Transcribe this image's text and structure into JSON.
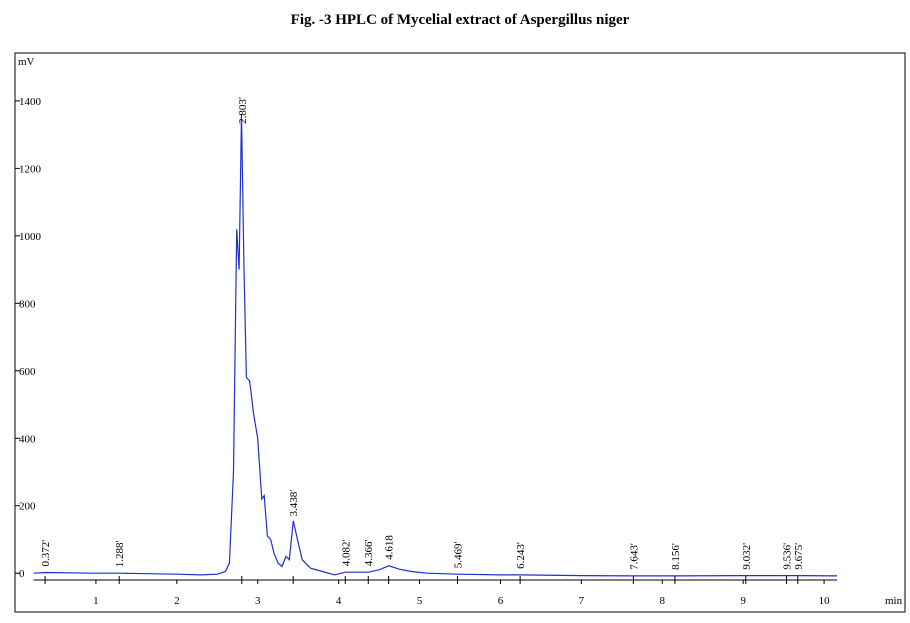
{
  "chart_data": {
    "type": "line",
    "title": "Fig. -3 HPLC of Mycelial extract of Aspergillus niger",
    "ylabel": "mV",
    "xlabel": "min",
    "xlim": [
      0,
      11
    ],
    "ylim": [
      -115,
      1542
    ],
    "xticks": [
      1,
      2,
      3,
      4,
      5,
      6,
      7,
      8,
      9,
      10
    ],
    "yticks": [
      0,
      200,
      400,
      600,
      800,
      1000,
      1200,
      1400
    ],
    "series": [
      {
        "color": "#1f2fd0",
        "x": [
          0.23,
          0.37,
          1.0,
          1.29,
          2.0,
          2.3,
          2.5,
          2.6,
          2.65,
          2.7,
          2.74,
          2.77,
          2.8,
          2.83,
          2.86,
          2.9,
          2.95,
          3.0,
          3.05,
          3.08,
          3.12,
          3.16,
          3.2,
          3.25,
          3.3,
          3.35,
          3.39,
          3.44,
          3.5,
          3.55,
          3.65,
          3.8,
          3.95,
          4.08,
          4.2,
          4.37,
          4.5,
          4.62,
          4.75,
          4.9,
          5.1,
          5.47,
          6.0,
          6.24,
          7.0,
          7.64,
          8.16,
          9.03,
          9.54,
          9.68,
          10.16
        ],
        "values": [
          0,
          2,
          0,
          0,
          -3,
          -5,
          -3,
          5,
          30,
          300,
          1020,
          900,
          1360,
          900,
          580,
          570,
          470,
          400,
          220,
          230,
          110,
          100,
          60,
          30,
          20,
          50,
          40,
          155,
          90,
          40,
          15,
          5,
          -5,
          3,
          3,
          3,
          10,
          22,
          12,
          5,
          0,
          -3,
          -5,
          -5,
          -7,
          -8,
          -8,
          -7,
          -7,
          -7,
          -8
        ]
      }
    ],
    "peaks": [
      {
        "x": 0.372,
        "label": "0.372'"
      },
      {
        "x": 1.288,
        "label": "1.288'"
      },
      {
        "x": 2.803,
        "label": "2.803'"
      },
      {
        "x": 3.438,
        "label": "3.438'"
      },
      {
        "x": 4.082,
        "label": "4.082'"
      },
      {
        "x": 4.366,
        "label": "4.366'"
      },
      {
        "x": 4.618,
        "label": "4.618"
      },
      {
        "x": 5.469,
        "label": "5.469'"
      },
      {
        "x": 6.243,
        "label": "6.243'"
      },
      {
        "x": 7.643,
        "label": "7.643'"
      },
      {
        "x": 8.156,
        "label": "8.156'"
      },
      {
        "x": 9.032,
        "label": "9.032'"
      },
      {
        "x": 9.536,
        "label": "9.536'"
      },
      {
        "x": 9.675,
        "label": "9.675'"
      }
    ]
  }
}
